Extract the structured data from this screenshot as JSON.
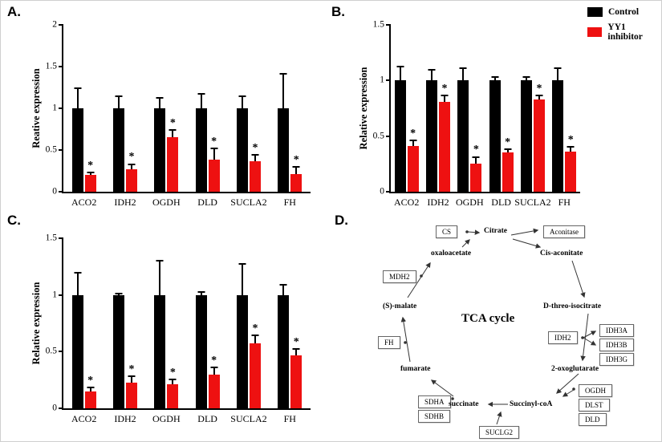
{
  "figure": {
    "panels": {
      "a": "A.",
      "b": "B.",
      "c": "C.",
      "d": "D."
    }
  },
  "legend": {
    "items": [
      {
        "label": "Control",
        "color": "#000000"
      },
      {
        "label": "YY1 inhibitor",
        "color": "#ee1111"
      }
    ]
  },
  "chart_data": [
    {
      "type": "bar",
      "panel": "A",
      "ylabel": "Reative expression",
      "ylim": [
        0,
        2
      ],
      "yticks": [
        0,
        0.5,
        1,
        1.5,
        2
      ],
      "categories": [
        "ACO2",
        "IDH2",
        "OGDH",
        "DLD",
        "SUCLA2",
        "FH"
      ],
      "series": [
        {
          "name": "Control",
          "color": "#000000",
          "values": [
            1.0,
            1.0,
            1.0,
            1.0,
            1.0,
            1.0
          ],
          "errors": [
            0.25,
            0.15,
            0.13,
            0.18,
            0.15,
            0.42
          ]
        },
        {
          "name": "YY1 inhibitor",
          "color": "#ee1111",
          "values": [
            0.2,
            0.27,
            0.65,
            0.38,
            0.37,
            0.21
          ],
          "errors": [
            0.04,
            0.07,
            0.1,
            0.15,
            0.08,
            0.1
          ],
          "sig": [
            "*",
            "*",
            "*",
            "*",
            "*",
            "*"
          ]
        }
      ]
    },
    {
      "type": "bar",
      "panel": "B",
      "ylabel": "Relative expression",
      "ylim": [
        0,
        1.5
      ],
      "yticks": [
        0,
        0.5,
        1,
        1.5
      ],
      "categories": [
        "ACO2",
        "IDH2",
        "OGDH",
        "DLD",
        "SUCLA2",
        "FH"
      ],
      "series": [
        {
          "name": "Control",
          "color": "#000000",
          "values": [
            1.0,
            1.0,
            1.0,
            1.0,
            1.0,
            1.0
          ],
          "errors": [
            0.13,
            0.1,
            0.12,
            0.04,
            0.04,
            0.12
          ]
        },
        {
          "name": "YY1 inhibitor",
          "color": "#ee1111",
          "values": [
            0.41,
            0.81,
            0.25,
            0.35,
            0.83,
            0.36
          ],
          "errors": [
            0.06,
            0.06,
            0.07,
            0.04,
            0.04,
            0.05
          ],
          "sig": [
            "*",
            "*",
            "*",
            "*",
            "*",
            "*"
          ]
        }
      ]
    },
    {
      "type": "bar",
      "panel": "C",
      "ylabel": "Relative expression",
      "ylim": [
        0,
        1.5
      ],
      "yticks": [
        0,
        0.5,
        1,
        1.5
      ],
      "categories": [
        "ACO2",
        "IDH2",
        "OGDH",
        "DLD",
        "SUCLA2",
        "FH"
      ],
      "series": [
        {
          "name": "Control",
          "color": "#000000",
          "values": [
            1.0,
            1.0,
            1.0,
            1.0,
            1.0,
            1.0
          ],
          "errors": [
            0.2,
            0.02,
            0.31,
            0.03,
            0.28,
            0.1
          ]
        },
        {
          "name": "YY1 inhibitor",
          "color": "#ee1111",
          "values": [
            0.15,
            0.23,
            0.21,
            0.3,
            0.57,
            0.47
          ],
          "errors": [
            0.04,
            0.06,
            0.05,
            0.07,
            0.08,
            0.06
          ],
          "sig": [
            "*",
            "*",
            "*",
            "*",
            "*",
            "*"
          ]
        }
      ]
    }
  ],
  "diagram": {
    "title": "TCA cycle",
    "nodes": {
      "cs": "CS",
      "aconitase": "Aconitase",
      "mdh2": "MDH2",
      "fh": "FH",
      "idh2": "IDH2",
      "idh3a": "IDH3A",
      "idh3b": "IDH3B",
      "idh3g": "IDH3G",
      "ogdh": "OGDH",
      "dlst": "DLST",
      "dld": "DLD",
      "sdha": "SDHA",
      "sdhb": "SDHB",
      "suclg2": "SUCLG2",
      "citrate": "Citrate",
      "oxaloacetate": "oxaloacetate",
      "cis_aconitate": "Cis-aconitate",
      "s_malate": "(S)-malate",
      "d_threo_isocitrate": "D-threo-isocitrate",
      "fumarate": "fumarate",
      "oxoglutarate": "2-oxoglutarate",
      "succinate": "succinate",
      "succinyl_coa": "Succinyl-coA"
    }
  }
}
